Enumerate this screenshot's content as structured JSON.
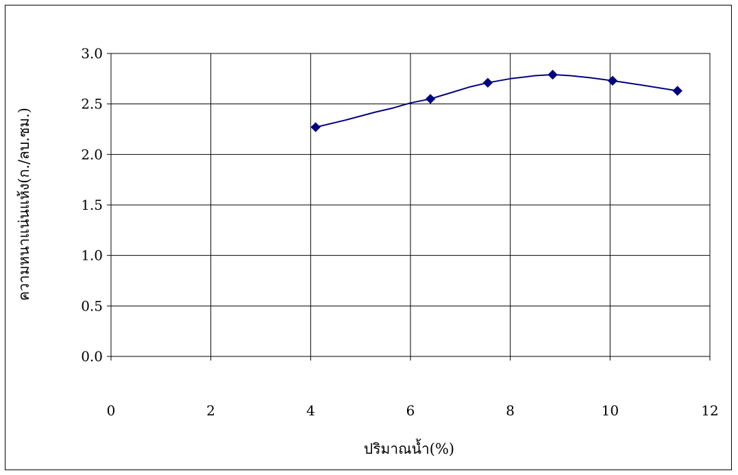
{
  "chart_data": {
    "type": "scatter",
    "title": "",
    "xlabel": "ปริมาณน้ำ(%)",
    "ylabel": "ความหนาแน่นแห้ง(ก./ลบ.ซม.)",
    "xlim": [
      0,
      12
    ],
    "ylim": [
      0.0,
      3.0
    ],
    "x_ticks": [
      "0",
      "2",
      "4",
      "6",
      "8",
      "10",
      "12"
    ],
    "y_ticks": [
      "0.0",
      "0.5",
      "1.0",
      "1.5",
      "2.0",
      "2.5",
      "3.0"
    ],
    "grid": true,
    "marker": "diamond",
    "series": [
      {
        "color": "#000080",
        "x": [
          4.1,
          6.4,
          7.55,
          8.85,
          10.05,
          11.35
        ],
        "y": [
          2.27,
          2.55,
          2.71,
          2.79,
          2.73,
          2.63
        ]
      }
    ],
    "smooth_line": {
      "color": "#000080",
      "x": [
        4.1,
        4.7,
        5.3,
        5.65,
        6.0,
        6.4,
        6.8,
        7.2,
        7.55,
        8.0,
        8.5,
        8.85,
        9.2,
        9.6,
        10.05,
        10.6,
        11.35
      ],
      "y": [
        2.27,
        2.34,
        2.42,
        2.46,
        2.51,
        2.55,
        2.61,
        2.67,
        2.71,
        2.75,
        2.78,
        2.79,
        2.78,
        2.76,
        2.73,
        2.69,
        2.63
      ]
    }
  }
}
